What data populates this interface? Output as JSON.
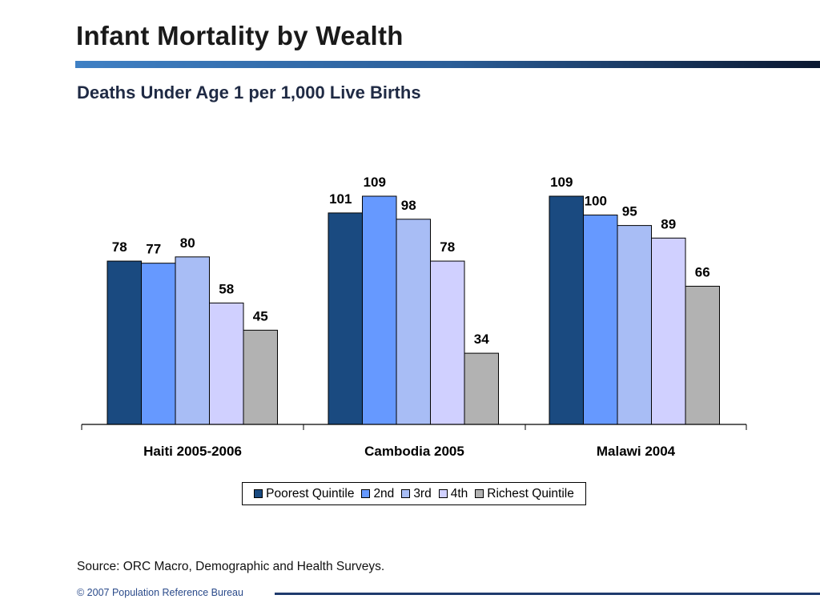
{
  "slide": {
    "title": "Infant Mortality by Wealth",
    "subtitle": "Deaths Under Age 1 per 1,000 Live Births",
    "source": "Source: ORC Macro, Demographic and Health Surveys.",
    "copyright": "© 2007 Population Reference Bureau"
  },
  "colors": {
    "title_rule": [
      "#3f80c4",
      "#0a1730"
    ],
    "series": [
      "#1a4a80",
      "#6699ff",
      "#a8bdf5",
      "#d0d0ff",
      "#b2b2b2"
    ]
  },
  "chart_data": {
    "type": "bar",
    "categories": [
      "Haiti 2005-2006",
      "Cambodia 2005",
      "Malawi  2004"
    ],
    "series": [
      {
        "name": "Poorest Quintile",
        "values": [
          78,
          101,
          109
        ]
      },
      {
        "name": "2nd",
        "values": [
          77,
          109,
          100
        ]
      },
      {
        "name": "3rd",
        "values": [
          80,
          98,
          95
        ]
      },
      {
        "name": "4th",
        "values": [
          58,
          78,
          89
        ]
      },
      {
        "name": "Richest Quintile",
        "values": [
          45,
          34,
          66
        ]
      }
    ],
    "ylim": [
      0,
      140
    ],
    "grid": false,
    "legend": "bottom",
    "data_labels": true
  }
}
